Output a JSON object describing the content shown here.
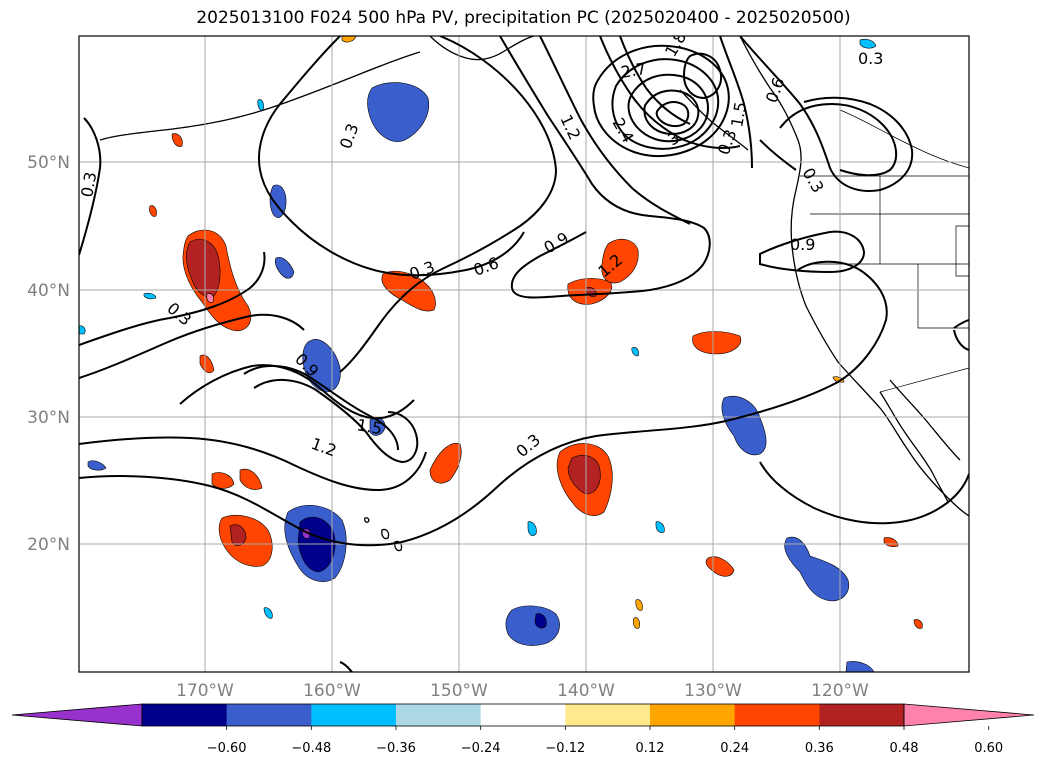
{
  "title": "2025013100 F024 500 hPa PV, precipitation PC (2025020400 - 2025020500)",
  "lat_labels": [
    "50°N",
    "40°N",
    "30°N",
    "20°N"
  ],
  "lon_labels": [
    "170°W",
    "160°W",
    "150°W",
    "140°W",
    "130°W",
    "120°W"
  ],
  "contour_labels": [
    "0.3",
    "0.3",
    "0.3",
    "0.3",
    "0.3",
    "0.3",
    "0.3",
    "0.6",
    "0.6",
    "0.9",
    "0.9",
    "0.9",
    "1.2",
    "1.2",
    "1.2",
    "1.5",
    "1.5",
    "1.8",
    "2.4",
    "2.7",
    "3.",
    "0.3"
  ],
  "colorbar": {
    "ticks": [
      "−0.60",
      "−0.48",
      "−0.36",
      "−0.24",
      "−0.12",
      "0.12",
      "0.24",
      "0.36",
      "0.48",
      "0.60"
    ],
    "colors": [
      "#9932cc",
      "#00008b",
      "#3a5fcd",
      "#00bfff",
      "#add8e6",
      "#ffffff",
      "#ffe98c",
      "#ffa500",
      "#ff4500",
      "#b22222",
      "#ff82ab"
    ]
  }
}
